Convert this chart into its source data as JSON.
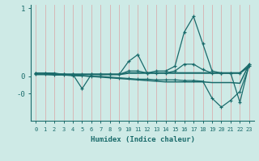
{
  "x": [
    0,
    1,
    2,
    3,
    4,
    5,
    6,
    7,
    8,
    9,
    10,
    11,
    12,
    13,
    14,
    15,
    16,
    17,
    18,
    19,
    20,
    21,
    22,
    23
  ],
  "series1_spiky": [
    0.05,
    0.05,
    0.05,
    0.03,
    0.03,
    -0.18,
    0.03,
    0.03,
    0.03,
    0.03,
    0.22,
    0.32,
    0.05,
    0.08,
    0.08,
    0.15,
    0.65,
    0.88,
    0.48,
    0.08,
    0.05,
    0.05,
    -0.38,
    0.18
  ],
  "series2_smooth": [
    0.05,
    0.05,
    0.03,
    0.03,
    0.03,
    0.03,
    0.03,
    0.03,
    0.03,
    0.03,
    0.08,
    0.08,
    0.05,
    0.05,
    0.05,
    0.08,
    0.18,
    0.18,
    0.1,
    0.05,
    0.05,
    0.05,
    0.05,
    0.18
  ],
  "series3_diagonal": [
    0.05,
    0.05,
    0.04,
    0.03,
    0.02,
    0.01,
    0.0,
    -0.01,
    -0.02,
    -0.03,
    -0.04,
    -0.05,
    -0.06,
    -0.07,
    -0.08,
    -0.08,
    -0.08,
    -0.08,
    -0.08,
    -0.09,
    -0.09,
    -0.09,
    -0.1,
    0.18
  ],
  "series4_dive": [
    0.03,
    0.03,
    0.02,
    0.02,
    0.01,
    0.01,
    0.0,
    0.0,
    -0.01,
    -0.02,
    -0.03,
    -0.04,
    -0.04,
    -0.05,
    -0.05,
    -0.05,
    -0.06,
    -0.06,
    -0.07,
    -0.32,
    -0.45,
    -0.35,
    -0.22,
    0.15
  ],
  "series5_flat": [
    0.03,
    0.03,
    0.03,
    0.03,
    0.03,
    0.03,
    0.03,
    0.03,
    0.03,
    0.03,
    0.05,
    0.05,
    0.05,
    0.05,
    0.05,
    0.05,
    0.05,
    0.05,
    0.05,
    0.05,
    0.05,
    0.05,
    0.05,
    0.15
  ],
  "bg_color": "#ceeae6",
  "line_color": "#1a6b6b",
  "grid_color": "#d8b0b0",
  "xlabel": "Humidex (Indice chaleur)",
  "ylim": [
    -0.65,
    1.05
  ],
  "xlim": [
    -0.5,
    23.5
  ],
  "ytick_positions": [
    1.0,
    0.0,
    -0.25
  ],
  "ytick_labels": [
    "1",
    "0",
    "-0"
  ]
}
